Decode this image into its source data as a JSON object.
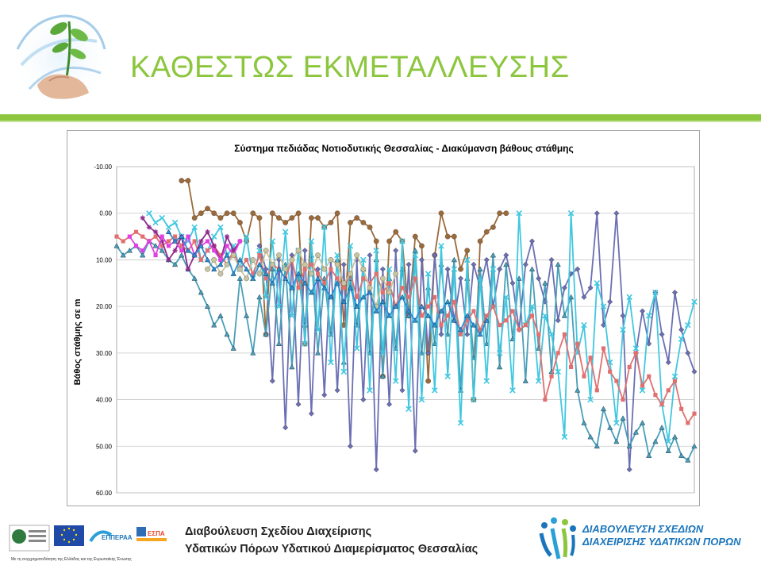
{
  "header": {
    "title": "ΚΑΘΕΣΤΩΣ ΕΚΜΕΤΑΛΛΕΥΣΗΣ"
  },
  "colors": {
    "accent": "#8cc63e",
    "brand_blue": "#1b75bc"
  },
  "chart_data": {
    "type": "line",
    "title": "Σύστημα πεδιάδας Νοτιοδυτικής Θεσσαλίας - Διακύμανση βάθους στάθμης",
    "xlabel": "",
    "ylabel": "Βάθος στάθμης σε m",
    "ylim": [
      -10,
      60
    ],
    "y_inverted": true,
    "y_ticks": [
      "-10.00",
      "0.00",
      "10.00",
      "20.00",
      "30.00",
      "40.00",
      "50.00",
      "60.00"
    ],
    "grid": true,
    "legend": "none",
    "x": [
      1,
      2,
      3,
      4,
      5,
      6,
      7,
      8,
      9,
      10,
      11,
      12,
      13,
      14,
      15,
      16,
      17,
      18,
      19,
      20,
      21,
      22,
      23,
      24,
      25,
      26,
      27,
      28,
      29,
      30,
      31,
      32,
      33,
      34,
      35,
      36,
      37,
      38,
      39,
      40,
      41,
      42,
      43,
      44,
      45,
      46,
      47,
      48,
      49,
      50,
      51,
      52,
      53,
      54,
      55,
      56,
      57,
      58,
      59,
      60,
      61,
      62,
      63,
      64,
      65,
      66,
      67,
      68,
      69,
      70,
      71,
      72,
      73,
      74,
      75,
      76,
      77,
      78,
      79,
      80,
      81,
      82,
      83,
      84,
      85,
      86,
      87,
      88,
      89,
      90
    ],
    "series": [
      {
        "marker": "circle",
        "color": "#9b6a3a",
        "values": [
          null,
          null,
          null,
          null,
          null,
          null,
          null,
          null,
          null,
          null,
          -7,
          -7,
          1,
          0,
          -1,
          0,
          1,
          0,
          0,
          2,
          6,
          0,
          1,
          26,
          0,
          1,
          2,
          1,
          0,
          28,
          1,
          1,
          3,
          2,
          0,
          24,
          2,
          1,
          2,
          3,
          6,
          35,
          6,
          4,
          6,
          22,
          5,
          7,
          36,
          9,
          0,
          5,
          5,
          12,
          8,
          40,
          6,
          4,
          3,
          0,
          0,
          null,
          null,
          null,
          null,
          null,
          null,
          null,
          null,
          null,
          null,
          null,
          null,
          null,
          null,
          null,
          null,
          null,
          null,
          null,
          null,
          null,
          null,
          null,
          null,
          null,
          null,
          null,
          null,
          null
        ]
      },
      {
        "marker": "diamond",
        "color": "#6b6fb3",
        "values": [
          null,
          null,
          null,
          null,
          null,
          null,
          null,
          null,
          null,
          null,
          null,
          null,
          null,
          null,
          null,
          null,
          null,
          null,
          null,
          null,
          null,
          null,
          7,
          12,
          36,
          10,
          46,
          9,
          41,
          8,
          43,
          12,
          39,
          10,
          38,
          11,
          50,
          10,
          40,
          9,
          55,
          12,
          41,
          8,
          38,
          11,
          51,
          10,
          30,
          9,
          26,
          12,
          23,
          14,
          26,
          11,
          16,
          10,
          20,
          12,
          9,
          15,
          25,
          11,
          6,
          14,
          19,
          10,
          23,
          16,
          13,
          12,
          18,
          16,
          0,
          24,
          19,
          0,
          22,
          55,
          30,
          21,
          28,
          17,
          26,
          32,
          17,
          25,
          30,
          34
        ]
      },
      {
        "marker": "triangle",
        "color": "#4a9fb8",
        "values": [
          7,
          9,
          8,
          7,
          9,
          6,
          7,
          8,
          10,
          11,
          9,
          12,
          14,
          17,
          20,
          24,
          22,
          26,
          29,
          14,
          22,
          30,
          18,
          26,
          12,
          28,
          11,
          33,
          13,
          24,
          9,
          30,
          14,
          26,
          10,
          32,
          14,
          24,
          12,
          30,
          10,
          35,
          14,
          29,
          12,
          22,
          8,
          30,
          16,
          28,
          11,
          26,
          10,
          38,
          14,
          31,
          12,
          28,
          9,
          33,
          11,
          27,
          14,
          36,
          12,
          29,
          15,
          34,
          11,
          22,
          18,
          38,
          45,
          48,
          50,
          42,
          46,
          49,
          44,
          50,
          47,
          45,
          52,
          49,
          46,
          51,
          48,
          52,
          53,
          50
        ]
      },
      {
        "marker": "x",
        "color": "#41c7e0",
        "values": [
          null,
          null,
          null,
          null,
          null,
          0,
          2,
          1,
          3,
          2,
          5,
          6,
          3,
          10,
          8,
          5,
          3,
          9,
          7,
          12,
          5,
          14,
          8,
          18,
          6,
          20,
          4,
          22,
          8,
          28,
          6,
          25,
          3,
          32,
          9,
          34,
          7,
          29,
          10,
          38,
          8,
          30,
          12,
          36,
          6,
          42,
          9,
          40,
          13,
          38,
          7,
          35,
          12,
          45,
          10,
          40,
          14,
          36,
          12,
          30,
          18,
          38,
          0,
          24,
          20,
          36,
          22,
          26,
          34,
          48,
          0,
          30,
          24,
          40,
          15,
          20,
          32,
          45,
          25,
          18,
          29,
          38,
          22,
          17,
          41,
          49,
          35,
          27,
          24,
          19
        ]
      },
      {
        "marker": "square",
        "color": "#e07070",
        "values": [
          5,
          6,
          5,
          4,
          5,
          6,
          5,
          7,
          6,
          5,
          7,
          8,
          6,
          10,
          8,
          7,
          9,
          11,
          8,
          12,
          10,
          13,
          9,
          14,
          11,
          12,
          14,
          10,
          16,
          12,
          11,
          13,
          15,
          12,
          14,
          16,
          13,
          18,
          14,
          15,
          13,
          17,
          15,
          20,
          16,
          18,
          14,
          22,
          20,
          18,
          24,
          22,
          19,
          26,
          23,
          21,
          25,
          22,
          20,
          24,
          23,
          21,
          25,
          24,
          22,
          26,
          40,
          35,
          30,
          26,
          33,
          28,
          35,
          31,
          38,
          29,
          34,
          36,
          40,
          33,
          30,
          37,
          35,
          39,
          41,
          38,
          36,
          42,
          45,
          43
        ]
      },
      {
        "marker": "star",
        "color": "#8e2a8e",
        "values": [
          null,
          null,
          null,
          null,
          1,
          3,
          4,
          6,
          10,
          8,
          5,
          12,
          9,
          6,
          4,
          7,
          10,
          5,
          8,
          6,
          null,
          null,
          null,
          null,
          null,
          null,
          null,
          null,
          null,
          null,
          null,
          null,
          null,
          null,
          null,
          null,
          null,
          null,
          null,
          null,
          null,
          null,
          null,
          null,
          null,
          null,
          null,
          null,
          null,
          null,
          null,
          null,
          null,
          null,
          null,
          null,
          null,
          null,
          null,
          null,
          null,
          null,
          null,
          null,
          null,
          null,
          null,
          null,
          null,
          null,
          null,
          null,
          null,
          null,
          null,
          null,
          null,
          null,
          null,
          null,
          null,
          null,
          null,
          null,
          null,
          null,
          null,
          null,
          null,
          null
        ]
      },
      {
        "marker": "square",
        "color": "#e040e0",
        "values": [
          null,
          null,
          5,
          7,
          8,
          6,
          9,
          5,
          7,
          6,
          8,
          5,
          9,
          7,
          6,
          8,
          10,
          7,
          9,
          6,
          null,
          null,
          null,
          null,
          null,
          null,
          null,
          null,
          null,
          null,
          null,
          null,
          null,
          null,
          null,
          null,
          null,
          null,
          null,
          null,
          null,
          null,
          null,
          null,
          null,
          null,
          null,
          null,
          null,
          null,
          null,
          null,
          null,
          null,
          null,
          null,
          null,
          null,
          null,
          null,
          null,
          null,
          null,
          null,
          null,
          null,
          null,
          null,
          null,
          null,
          null,
          null,
          null,
          null,
          null,
          null,
          null,
          null,
          null,
          null,
          null,
          null,
          null,
          null,
          null,
          null,
          null,
          null,
          null,
          null
        ]
      },
      {
        "marker": "circle",
        "color": "#c8c4a0",
        "values": [
          null,
          null,
          null,
          null,
          null,
          null,
          null,
          null,
          null,
          null,
          null,
          null,
          null,
          null,
          12,
          10,
          13,
          11,
          9,
          12,
          14,
          10,
          13,
          8,
          11,
          9,
          12,
          10,
          8,
          11,
          13,
          9,
          12,
          10,
          11,
          15,
          13,
          9,
          12,
          16,
          20,
          14,
          17,
          13,
          null,
          null,
          null,
          null,
          null,
          null,
          null,
          null,
          null,
          null,
          null,
          null,
          null,
          null,
          null,
          null,
          null,
          null,
          null,
          null,
          null,
          null,
          null,
          null,
          null,
          null,
          null,
          null,
          null,
          null,
          null,
          null,
          null,
          null,
          null,
          null,
          null,
          null,
          null,
          null,
          null,
          null,
          null,
          null,
          null,
          null
        ]
      },
      {
        "marker": "triangle",
        "color": "#2d8fd6",
        "values": [
          null,
          null,
          null,
          null,
          null,
          null,
          null,
          null,
          4,
          6,
          5,
          8,
          9,
          7,
          10,
          12,
          11,
          9,
          13,
          10,
          12,
          14,
          11,
          13,
          15,
          12,
          14,
          16,
          13,
          15,
          17,
          14,
          16,
          18,
          15,
          19,
          16,
          20,
          18,
          17,
          21,
          19,
          22,
          20,
          18,
          21,
          23,
          20,
          22,
          24,
          21,
          19,
          23,
          25,
          22,
          24,
          26,
          23,
          null,
          null,
          null,
          null,
          null,
          null,
          null,
          null,
          null,
          null,
          null,
          null,
          null,
          null,
          null,
          null,
          null,
          null,
          null,
          null,
          null,
          null,
          null,
          null,
          null,
          null,
          null,
          null,
          null,
          null,
          null,
          null
        ]
      }
    ]
  },
  "footer": {
    "line1": "Διαβούλευση Σχεδίου Διαχείρισης",
    "line2": "Υδατικών Πόρων Υδατικού Διαμερίσματος Θεσσαλίας",
    "cofund": "Με τη συγχρηματοδότηση της Ελλάδας και της Ευρωπαϊκής Ένωσης",
    "epperaa": "ΕΠΠΕΡΑΑ",
    "espa": "ΕΣΠΑ",
    "brand_line1": "ΔΙΑΒΟΥΛΕΥΣΗ ΣΧΕΔΙΩΝ",
    "brand_line2": "ΔΙΑΧΕΙΡΙΣΗΣ ΥΔΑΤΙΚΩΝ ΠΟΡΩΝ"
  }
}
